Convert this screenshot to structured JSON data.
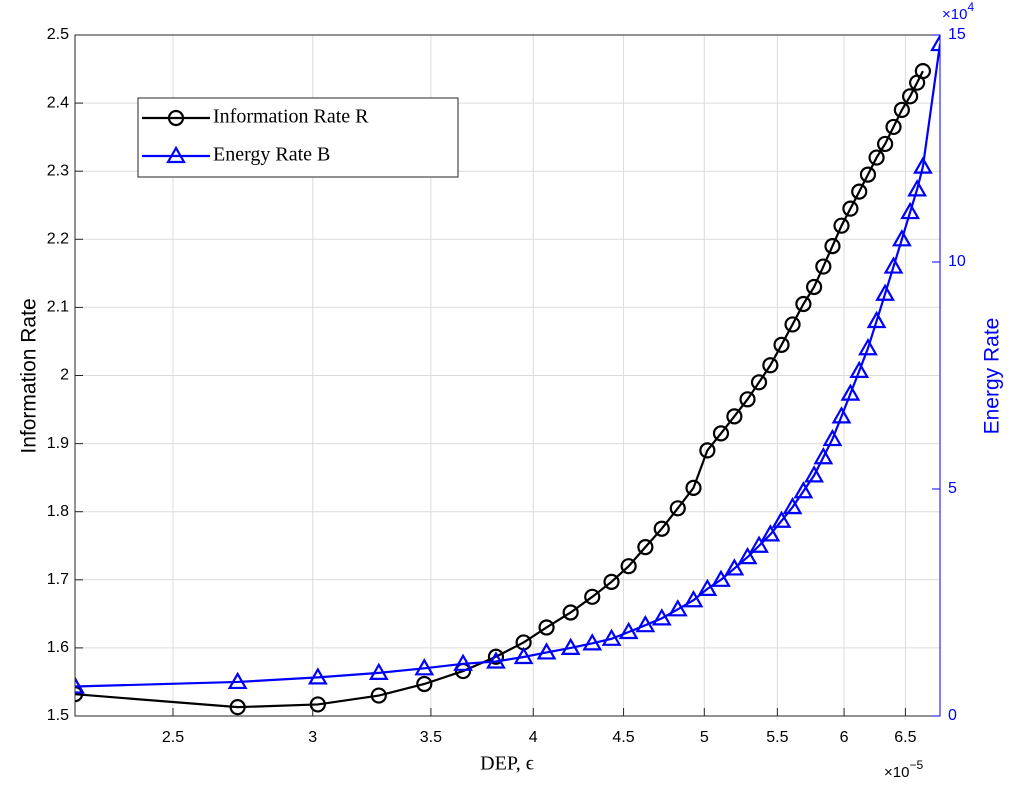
{
  "chart_data": {
    "type": "line",
    "xlabel": "DEP, ϵ",
    "ylabel": "Information Rate",
    "y2label": "Energy Rate",
    "x_exponent": {
      "base": "×10",
      "exp": "−5"
    },
    "y2_exponent": {
      "base": "×10",
      "exp": "4"
    },
    "xscale": "log",
    "xlim": [
      2.2,
      6.8
    ],
    "xticks": [
      2.5,
      3,
      3.5,
      4,
      4.5,
      5,
      5.5,
      6,
      6.5
    ],
    "ylim": [
      1.5,
      2.5
    ],
    "yticks": [
      1.5,
      1.6,
      1.7,
      1.8,
      1.9,
      2,
      2.1,
      2.2,
      2.3,
      2.4,
      2.5
    ],
    "y2lim": [
      0,
      15
    ],
    "y2ticks": [
      0,
      5,
      10,
      15
    ],
    "grid": true,
    "legend": "upper left",
    "x": [
      2.2,
      2.72,
      3.02,
      3.27,
      3.47,
      3.65,
      3.81,
      3.95,
      4.07,
      4.2,
      4.32,
      4.43,
      4.53,
      4.63,
      4.73,
      4.83,
      4.93,
      5.02,
      5.11,
      5.2,
      5.29,
      5.37,
      5.45,
      5.53,
      5.61,
      5.69,
      5.77,
      5.84,
      5.91,
      5.98,
      6.05,
      6.12,
      6.19,
      6.26,
      6.33,
      6.4,
      6.47,
      6.54,
      6.6,
      6.65,
      6.8
    ],
    "series": [
      {
        "name": "Information Rate R",
        "color": "#000000",
        "marker": "circle",
        "values": [
          1.532,
          1.513,
          1.517,
          1.53,
          1.547,
          1.566,
          1.587,
          1.608,
          1.63,
          1.652,
          1.675,
          1.697,
          1.72,
          1.748,
          1.775,
          1.805,
          1.835,
          1.89,
          1.915,
          1.94,
          1.965,
          1.99,
          2.015,
          2.045,
          2.075,
          2.105,
          2.13,
          2.16,
          2.19,
          2.22,
          2.245,
          2.27,
          2.295,
          2.32,
          2.34,
          2.365,
          2.39,
          2.41,
          2.43,
          2.447,
          null
        ]
      },
      {
        "name": "Energy Rate B",
        "color": "#0000ff",
        "marker": "triangle",
        "axis": "y2",
        "values": [
          0.65,
          0.75,
          0.85,
          0.95,
          1.05,
          1.15,
          1.2,
          1.3,
          1.4,
          1.5,
          1.6,
          1.7,
          1.85,
          2.0,
          2.15,
          2.35,
          2.55,
          2.8,
          3.0,
          3.25,
          3.5,
          3.75,
          4.0,
          4.3,
          4.6,
          4.95,
          5.3,
          5.7,
          6.1,
          6.6,
          7.1,
          7.6,
          8.1,
          8.7,
          9.3,
          9.9,
          10.5,
          11.1,
          11.6,
          12.1,
          14.8
        ]
      }
    ]
  }
}
